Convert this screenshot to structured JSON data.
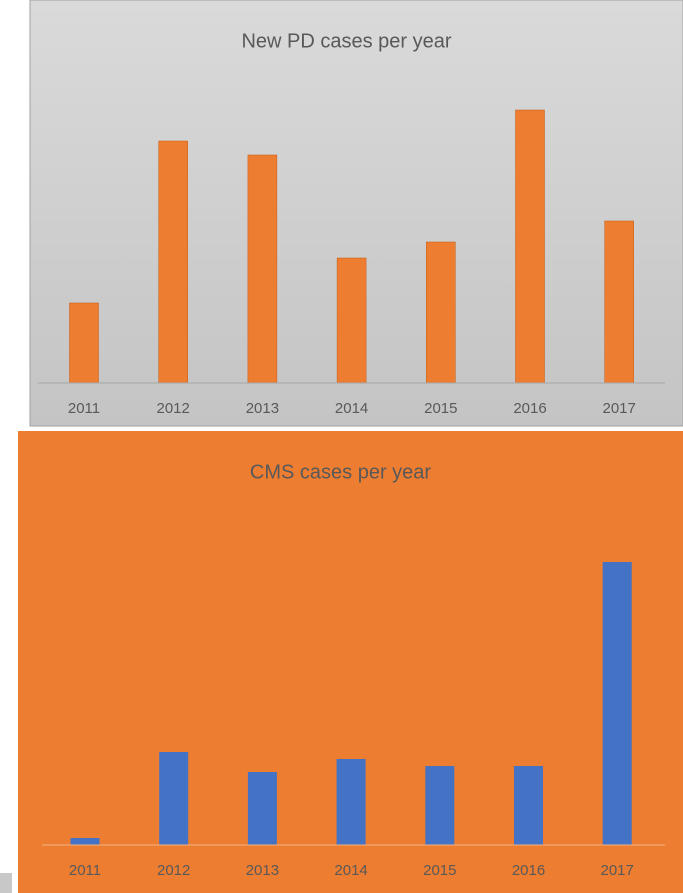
{
  "chart_data": [
    {
      "type": "bar",
      "title": "New PD cases per year",
      "categories": [
        "2011",
        "2012",
        "2013",
        "2014",
        "2015",
        "2016",
        "2017"
      ],
      "values": [
        80,
        242,
        228,
        125,
        141,
        273,
        162
      ],
      "color": "#ed7d31",
      "background": "#d0d0d0",
      "ylim": [
        0,
        300
      ]
    },
    {
      "type": "bar",
      "title": "CMS cases per year",
      "categories": [
        "2011",
        "2012",
        "2013",
        "2014",
        "2015",
        "2016",
        "2017"
      ],
      "values": [
        7,
        93,
        73,
        86,
        79,
        79,
        283
      ],
      "color": "#4472c4",
      "background": "#ed7d31",
      "ylim": [
        0,
        300
      ]
    }
  ]
}
